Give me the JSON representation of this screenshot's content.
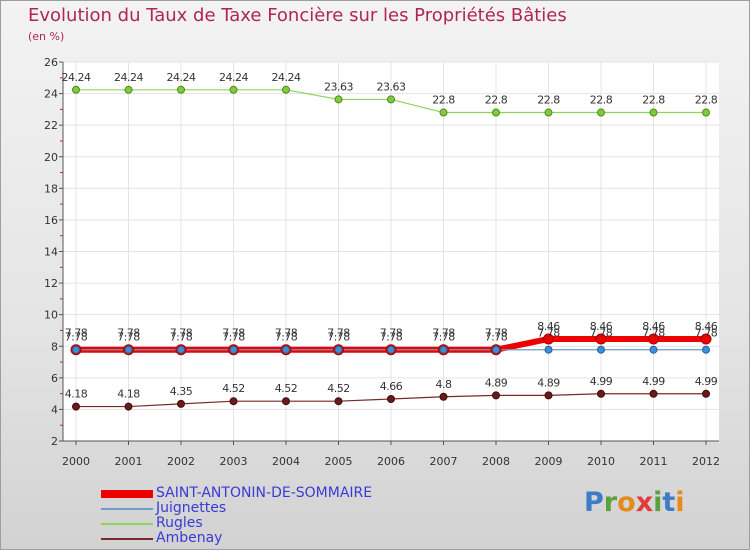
{
  "chart_data": {
    "type": "line",
    "title": "Evolution du Taux de Taxe Foncière sur les Propriétés Bâties",
    "ylabel": "(en %)",
    "xlabel": "",
    "categories": [
      "2000",
      "2001",
      "2002",
      "2003",
      "2004",
      "2005",
      "2006",
      "2007",
      "2008",
      "2009",
      "2010",
      "2011",
      "2012"
    ],
    "ylim": [
      2,
      26
    ],
    "yticks": [
      2,
      4,
      6,
      8,
      10,
      12,
      14,
      16,
      18,
      20,
      22,
      24,
      26
    ],
    "series": [
      {
        "name": "SAINT-ANTONIN-DE-SOMMAIRE",
        "color": "#ee0000",
        "values": [
          7.78,
          7.78,
          7.78,
          7.78,
          7.78,
          7.78,
          7.78,
          7.78,
          7.78,
          8.46,
          8.46,
          8.46,
          8.46
        ],
        "labels": [
          "7.78",
          "7.78",
          "7.78",
          "7.78",
          "7.78",
          "7.78",
          "7.78",
          "7.78",
          "7.78",
          "8.46",
          "8.46",
          "8.46",
          "8.46"
        ]
      },
      {
        "name": "Juignettes",
        "color": "#6e9cc8",
        "values": [
          7.78,
          7.78,
          7.78,
          7.78,
          7.78,
          7.78,
          7.78,
          7.78,
          7.78,
          7.78,
          7.78,
          7.78,
          7.78
        ],
        "labels": [
          "7.78",
          "7.78",
          "7.78",
          "7.78",
          "7.78",
          "7.78",
          "7.78",
          "7.78",
          "7.78",
          "7.78",
          "7.78",
          "7.78",
          "7.78"
        ]
      },
      {
        "name": "Rugles",
        "color": "#8fd25a",
        "values": [
          24.24,
          24.24,
          24.24,
          24.24,
          24.24,
          23.63,
          23.63,
          22.8,
          22.8,
          22.8,
          22.8,
          22.8,
          22.8
        ],
        "labels": [
          "24.24",
          "24.24",
          "24.24",
          "24.24",
          "24.24",
          "23.63",
          "23.63",
          "22.8",
          "22.8",
          "22.8",
          "22.8",
          "22.8",
          "22.8"
        ]
      },
      {
        "name": "Ambenay",
        "color": "#7a2a2a",
        "values": [
          4.18,
          4.18,
          4.35,
          4.52,
          4.52,
          4.52,
          4.66,
          4.8,
          4.89,
          4.89,
          4.99,
          4.99,
          4.99
        ],
        "labels": [
          "4.18",
          "4.18",
          "4.35",
          "4.52",
          "4.52",
          "4.52",
          "4.66",
          "4.8",
          "4.89",
          "4.89",
          "4.99",
          "4.99",
          "4.99"
        ]
      }
    ]
  },
  "logo": {
    "text": "Proxiti",
    "letters": [
      {
        "ch": "P",
        "color": "#3b7dc8"
      },
      {
        "ch": "r",
        "color": "#5aa03c"
      },
      {
        "ch": "o",
        "color": "#e68a1e"
      },
      {
        "ch": "x",
        "color": "#e03c3c"
      },
      {
        "ch": "i",
        "color": "#5aa03c"
      },
      {
        "ch": "t",
        "color": "#3b7dc8"
      },
      {
        "ch": "i",
        "color": "#e68a1e"
      }
    ]
  }
}
